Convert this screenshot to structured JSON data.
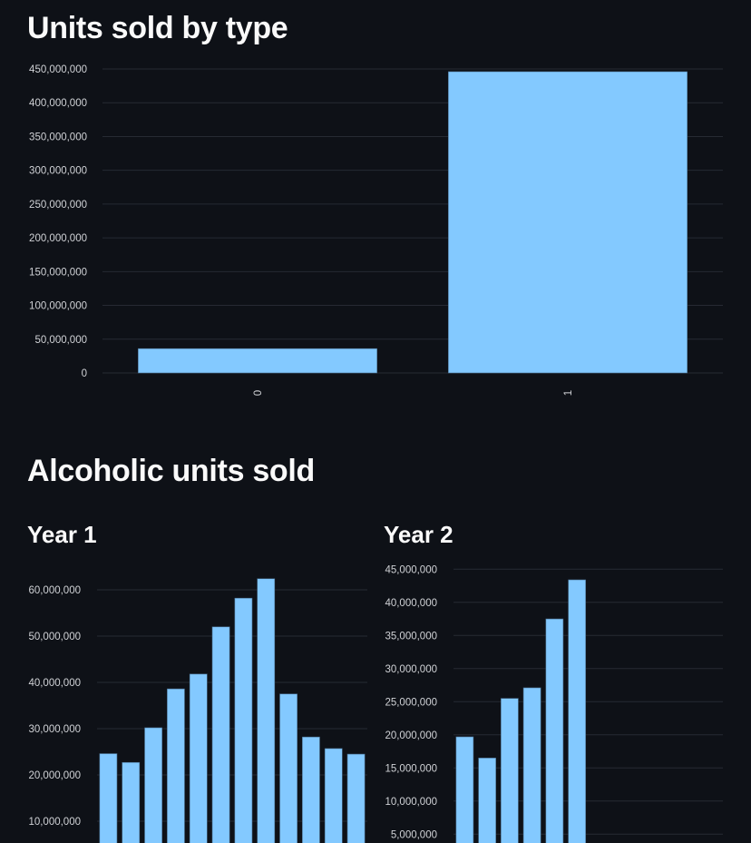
{
  "headings": {
    "units_by_type": "Units sold by type",
    "alcoholic": "Alcoholic units sold",
    "year1": "Year 1",
    "year2": "Year 2"
  },
  "colors": {
    "background": "#0e1117",
    "bar": "#83c9ff",
    "grid": "#262a33",
    "text": "#fafafa"
  },
  "chart_data": [
    {
      "type": "bar",
      "title": "Units sold by type",
      "categories": [
        "0",
        "1"
      ],
      "values": [
        36000000,
        446000000
      ],
      "ylim": [
        0,
        450000000
      ],
      "yticks": [
        0,
        50000000,
        100000000,
        150000000,
        200000000,
        250000000,
        300000000,
        350000000,
        400000000,
        450000000
      ],
      "ytick_labels": [
        "0",
        "50,000,000",
        "100,000,000",
        "150,000,000",
        "200,000,000",
        "250,000,000",
        "300,000,000",
        "350,000,000",
        "400,000,000",
        "450,000,000"
      ],
      "grid": true,
      "xlabel_rotation": "vertical"
    },
    {
      "type": "bar",
      "title": "Year 1",
      "values": [
        24600000,
        22700000,
        30200000,
        38600000,
        41800000,
        52000000,
        58200000,
        62400000,
        37500000,
        28200000,
        25700000,
        24500000
      ],
      "ylim": [
        0,
        65000000
      ],
      "yticks": [
        10000000,
        20000000,
        30000000,
        40000000,
        50000000,
        60000000
      ],
      "ytick_labels": [
        "10,000,000",
        "20,000,000",
        "30,000,000",
        "40,000,000",
        "50,000,000",
        "60,000,000"
      ],
      "grid": true
    },
    {
      "type": "bar",
      "title": "Year 2",
      "values": [
        19700000,
        16500000,
        25500000,
        27100000,
        37500000,
        43400000
      ],
      "ylim": [
        0,
        45000000
      ],
      "yticks": [
        5000000,
        10000000,
        15000000,
        20000000,
        25000000,
        30000000,
        35000000,
        40000000,
        45000000
      ],
      "ytick_labels": [
        "5,000,000",
        "10,000,000",
        "15,000,000",
        "20,000,000",
        "25,000,000",
        "30,000,000",
        "35,000,000",
        "40,000,000",
        "45,000,000"
      ],
      "grid": true
    }
  ]
}
